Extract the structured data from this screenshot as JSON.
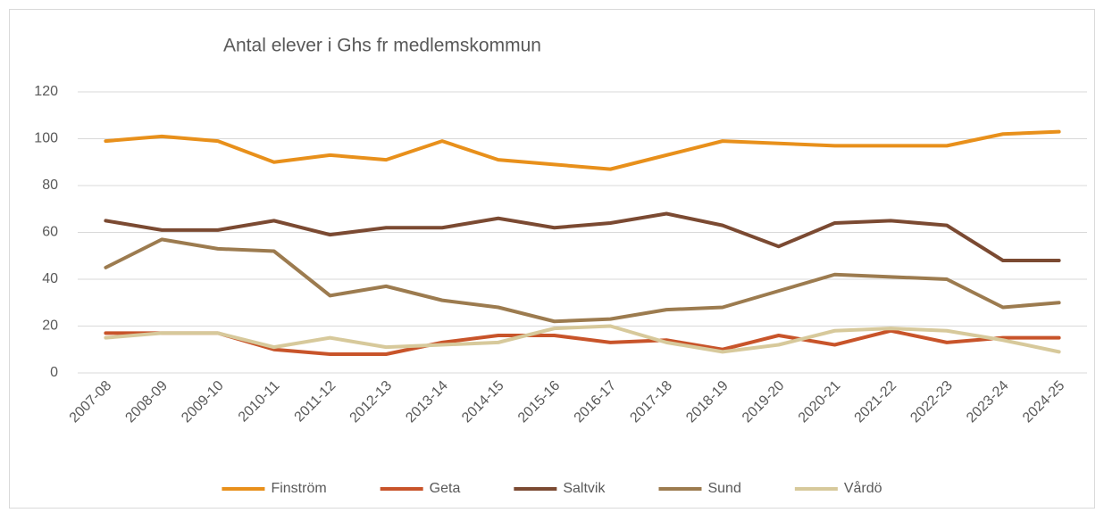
{
  "chart_data": {
    "type": "line",
    "title": "Antal elever i Ghs fr medlemskommun",
    "categories": [
      "2007-08",
      "2008-09",
      "2009-10",
      "2010-11",
      "2011-12",
      "2012-13",
      "2013-14",
      "2014-15",
      "2015-16",
      "2016-17",
      "2017-18",
      "2018-19",
      "2019-20",
      "2020-21",
      "2021-22",
      "2022-23",
      "2023-24",
      "2024-25"
    ],
    "series": [
      {
        "name": "Finström",
        "color": "#e8901b",
        "values": [
          99,
          101,
          99,
          90,
          93,
          91,
          99,
          91,
          89,
          87,
          93,
          99,
          98,
          97,
          97,
          97,
          102,
          103
        ]
      },
      {
        "name": "Geta",
        "color": "#c8542a",
        "values": [
          17,
          17,
          17,
          10,
          8,
          8,
          13,
          16,
          16,
          13,
          14,
          10,
          16,
          12,
          18,
          13,
          15,
          15
        ]
      },
      {
        "name": "Saltvik",
        "color": "#7b4a32",
        "values": [
          65,
          61,
          61,
          65,
          59,
          62,
          62,
          66,
          62,
          64,
          68,
          63,
          54,
          64,
          65,
          63,
          48,
          48
        ]
      },
      {
        "name": "Sund",
        "color": "#9c7b4f",
        "values": [
          45,
          57,
          53,
          52,
          33,
          37,
          31,
          28,
          22,
          23,
          27,
          28,
          35,
          42,
          41,
          40,
          28,
          30
        ]
      },
      {
        "name": "Vårdö",
        "color": "#d7c99b",
        "values": [
          15,
          17,
          17,
          11,
          15,
          11,
          12,
          13,
          19,
          20,
          13,
          9,
          12,
          18,
          19,
          18,
          14,
          9
        ]
      }
    ],
    "ylim": [
      0,
      120
    ],
    "yticks": [
      0,
      20,
      40,
      60,
      80,
      100,
      120
    ],
    "grid": true,
    "legend": "bottom"
  }
}
